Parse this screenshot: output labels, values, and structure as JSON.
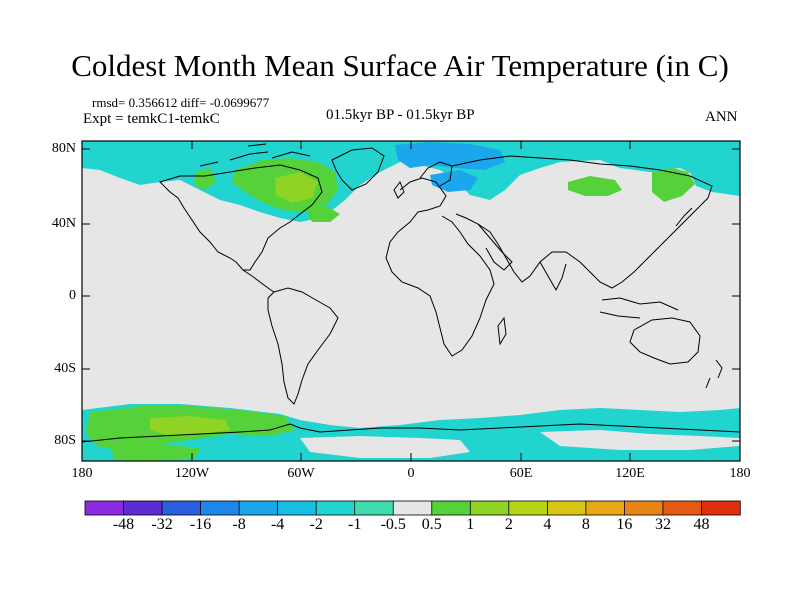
{
  "title": "Coldest Month Mean Surface Air Temperature (in C)",
  "stats": "rmsd= 0.356612 diff= -0.0699677",
  "expt": "Expt = temkC1-temkC",
  "period": "01.5kyr BP - 01.5kyr BP",
  "season": "ANN",
  "lat_labels": [
    "80N",
    "40N",
    "0",
    "40S",
    "80S"
  ],
  "lon_labels": [
    "180",
    "120W",
    "60W",
    "0",
    "60E",
    "120E",
    "180"
  ],
  "colorbar": {
    "labels": [
      "-48",
      "-32",
      "-16",
      "-8",
      "-4",
      "-2",
      "-1",
      "-0.5",
      "0.5",
      "1",
      "2",
      "4",
      "8",
      "16",
      "32",
      "48"
    ],
    "colors": [
      "#8a2be2",
      "#5a2ed0",
      "#2b5fe0",
      "#1f86ea",
      "#1ca6ec",
      "#17bfe6",
      "#22d4cf",
      "#3fdcb0",
      "#e6e6e6",
      "#55d13a",
      "#8fd324",
      "#b8d417",
      "#d9c614",
      "#e6a814",
      "#e88416",
      "#e55a12",
      "#e02f0c"
    ]
  },
  "colors": {
    "background": "#ffffff",
    "ocean_land_fill": "#e6e6e6",
    "neutral": "#e6e6e6",
    "cyan": "#22d4cf",
    "blue": "#1ca6ec",
    "light_green": "#55d13a",
    "yellow_green": "#8fd324",
    "coastline": "#000000"
  }
}
